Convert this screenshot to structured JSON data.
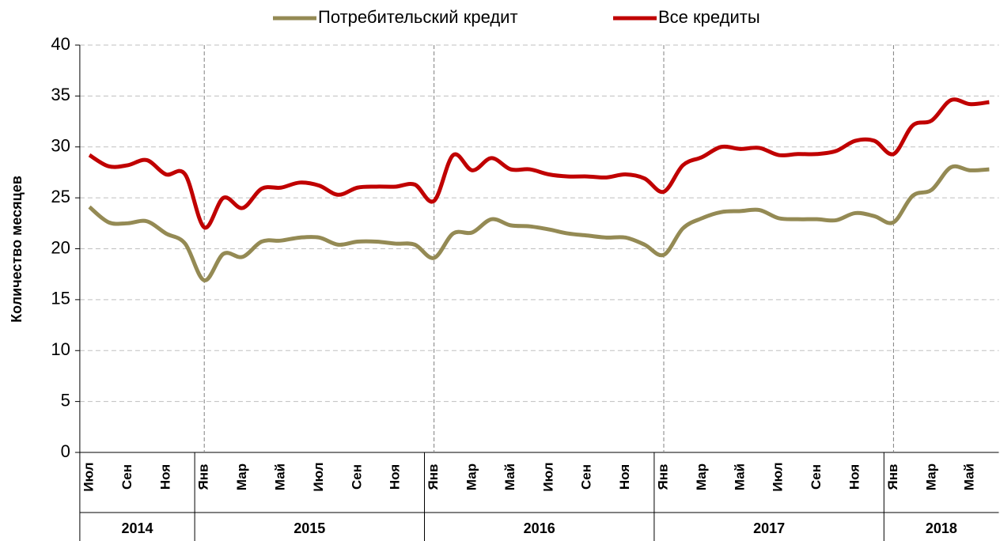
{
  "chart_data": {
    "type": "line",
    "y_label": "Количество месяцев",
    "categories": [
      "Июл",
      null,
      "Сен",
      null,
      "Ноя",
      null,
      "Янв",
      null,
      "Мар",
      null,
      "Май",
      null,
      "Июл",
      null,
      "Сен",
      null,
      "Ноя",
      null,
      "Янв",
      null,
      "Мар",
      null,
      "Май",
      null,
      "Июл",
      null,
      "Сен",
      null,
      "Ноя",
      null,
      "Янв",
      null,
      "Мар",
      null,
      "Май",
      null,
      "Июл",
      null,
      "Сен",
      null,
      "Ноя",
      null,
      "Янв",
      null,
      "Мар",
      null,
      "Май",
      null
    ],
    "year_groups": [
      {
        "label": "2014",
        "months": 6
      },
      {
        "label": "2015",
        "months": 12
      },
      {
        "label": "2016",
        "months": 12
      },
      {
        "label": "2017",
        "months": 12
      },
      {
        "label": "2018",
        "months": 6
      }
    ],
    "series": [
      {
        "name": "Потребительский кредит",
        "color": "#948a54",
        "values": [
          24.1,
          22.6,
          22.5,
          22.7,
          21.5,
          20.5,
          16.9,
          19.5,
          19.2,
          20.7,
          20.8,
          21.1,
          21.1,
          20.4,
          20.7,
          20.7,
          20.5,
          20.4,
          19.1,
          21.5,
          21.6,
          22.9,
          22.3,
          22.2,
          21.9,
          21.5,
          21.3,
          21.1,
          21.1,
          20.4,
          19.4,
          22.0,
          23.0,
          23.6,
          23.7,
          23.8,
          23.0,
          22.9,
          22.9,
          22.8,
          23.5,
          23.2,
          22.6,
          25.2,
          25.8,
          28.0,
          27.7,
          27.8
        ]
      },
      {
        "name": "Все кредиты",
        "color": "#c00000",
        "values": [
          29.2,
          28.1,
          28.2,
          28.7,
          27.3,
          27.3,
          22.1,
          25.0,
          24.0,
          25.9,
          26.0,
          26.5,
          26.2,
          25.3,
          26.0,
          26.1,
          26.1,
          26.3,
          24.7,
          29.2,
          27.7,
          28.9,
          27.8,
          27.8,
          27.3,
          27.1,
          27.1,
          27.0,
          27.3,
          26.9,
          25.6,
          28.2,
          29.0,
          30.0,
          29.8,
          29.9,
          29.2,
          29.3,
          29.3,
          29.6,
          30.6,
          30.6,
          29.3,
          32.1,
          32.6,
          34.6,
          34.2,
          34.4
        ]
      }
    ],
    "ylim": [
      0,
      40
    ],
    "yticks": [
      0,
      5,
      10,
      15,
      20,
      25,
      30,
      35,
      40
    ],
    "grid": true,
    "legend": "top"
  }
}
